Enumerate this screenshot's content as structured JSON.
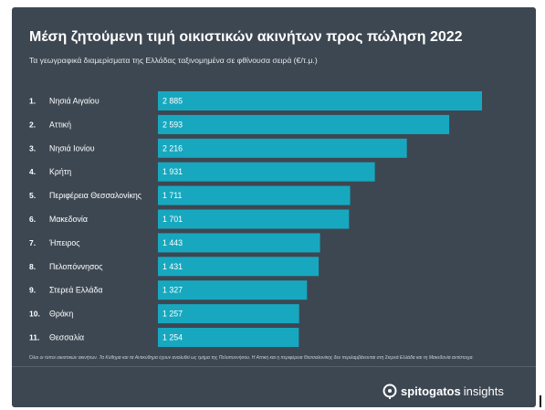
{
  "title": "Μέση ζητούμενη τιμή οικιστικών ακινήτων προς πώληση 2022",
  "subtitle": "Τα γεωγραφικά διαμερίσματα της Ελλάδας ταξινομημένα σε φθίνουσα σειρά (€/τ.μ.)",
  "footnote": "Όλοι οι τύποι οικιστικών ακινήτων. Τα Κύθηρα και τα Αντικύθηρα έχουν αναλυθεί ως τμήμα της Πελοποννήσου. Η Αττική και η περιφέρεια Θεσσαλονίκης δεν περιλαμβάνονται στη Στερεά Ελλάδα και τη Μακεδονία αντίστοιχα.",
  "brand": {
    "name": "spitogatos",
    "suffix": "insights",
    "icon": "pin-icon"
  },
  "colors": {
    "background": "#3d4752",
    "bar": "#17a8bf",
    "text": "#ffffff"
  },
  "chart_data": {
    "type": "bar",
    "orientation": "horizontal",
    "ranks": [
      "1.",
      "2.",
      "3.",
      "4.",
      "5.",
      "6.",
      "7.",
      "8.",
      "9.",
      "10.",
      "11."
    ],
    "categories": [
      "Νησιά Αιγαίου",
      "Αττική",
      "Νησιά Ιονίου",
      "Κρήτη",
      "Περιφέρεια Θεσσαλονίκης",
      "Μακεδονία",
      "Ήπειρος",
      "Πελοπόννησος",
      "Στερεά Ελλάδα",
      "Θράκη",
      "Θεσσαλία"
    ],
    "values": [
      2885,
      2593,
      2216,
      1931,
      1711,
      1701,
      1443,
      1431,
      1327,
      1257,
      1254
    ],
    "value_labels": [
      "2 885",
      "2 593",
      "2 216",
      "1 931",
      "1 711",
      "1 701",
      "1 443",
      "1 431",
      "1 327",
      "1 257",
      "1 254"
    ],
    "unit": "€/τ.μ.",
    "grid": false,
    "legend": "none"
  }
}
